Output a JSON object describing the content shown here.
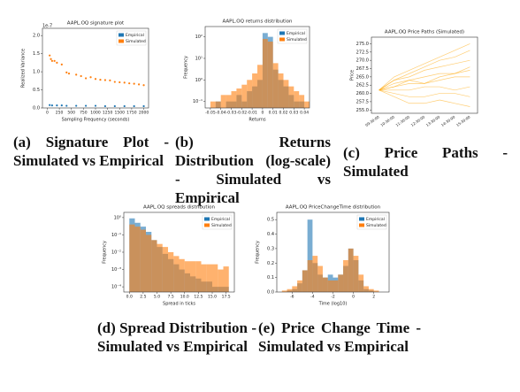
{
  "chart_data": [
    {
      "type": "scatter",
      "title": "AAPL.OQ signature plot",
      "xlabel": "Sampling Frequency (seconds)",
      "ylabel": "Realized Variance",
      "offset_label": "1e-7",
      "xlim": [
        -100,
        2100
      ],
      "xticks": [
        0,
        250,
        500,
        750,
        1000,
        1250,
        1500,
        1750,
        2000
      ],
      "ylim": [
        0,
        2.2
      ],
      "yticks": [
        {
          "value": 0,
          "label": "0.0"
        },
        {
          "value": 0.5,
          "label": "0.5"
        },
        {
          "value": 1,
          "label": "1.0"
        },
        {
          "value": 1.5,
          "label": "1.5"
        },
        {
          "value": 2,
          "label": "2.0"
        }
      ],
      "legend": "upper right",
      "series": [
        {
          "name": "Empirical",
          "color": "#1f77b4",
          "x": [
            50,
            100,
            200,
            300,
            400,
            600,
            800,
            1000,
            1200,
            1400,
            1600,
            1800,
            2000
          ],
          "values": [
            0.08,
            0.07,
            0.07,
            0.07,
            0.06,
            0.06,
            0.06,
            0.06,
            0.05,
            0.05,
            0.05,
            0.05,
            0.05
          ]
        },
        {
          "name": "Simulated",
          "color": "#ff7f0e",
          "x": [
            50,
            75,
            100,
            150,
            200,
            300,
            400,
            450,
            600,
            700,
            800,
            900,
            1000,
            1100,
            1200,
            1300,
            1400,
            1500,
            1600,
            1700,
            1800,
            1900,
            2000
          ],
          "values": [
            1.45,
            1.35,
            1.3,
            1.3,
            1.25,
            1.2,
            0.98,
            0.95,
            0.92,
            0.88,
            0.82,
            0.85,
            0.8,
            0.78,
            0.77,
            0.76,
            0.72,
            0.71,
            0.7,
            0.68,
            0.67,
            0.65,
            0.63
          ]
        }
      ]
    },
    {
      "type": "histogram",
      "title": "AAPL.OQ returns distribution",
      "xlabel": "Returns",
      "ylabel": "Frequency",
      "log_y": true,
      "xlim": [
        -0.055,
        0.045
      ],
      "xticks": [
        -0.05,
        -0.04,
        -0.03,
        -0.02,
        -0.01,
        0,
        0.01,
        0.02,
        0.03,
        0.04
      ],
      "ylim": [
        0.05,
        300
      ],
      "yticks": [
        {
          "value": 0.1,
          "label": "10⁻¹"
        },
        {
          "value": 1,
          "label": "10⁰"
        },
        {
          "value": 10,
          "label": "10¹"
        },
        {
          "value": 100,
          "label": "10²"
        }
      ],
      "legend": "upper right",
      "bins": [
        -0.05,
        -0.045,
        -0.04,
        -0.035,
        -0.03,
        -0.025,
        -0.02,
        -0.015,
        -0.01,
        -0.005,
        0,
        0.005,
        0.01,
        0.015,
        0.02,
        0.025,
        0.03,
        0.035,
        0.04,
        0.045
      ],
      "series": [
        {
          "name": "Empirical",
          "color": "#1f77b4",
          "values": [
            0,
            0.1,
            0,
            0.1,
            0.1,
            0.2,
            0.1,
            0.3,
            0.5,
            1,
            150,
            100,
            3,
            1,
            0.5,
            0.2,
            0.1,
            0.1,
            0
          ]
        },
        {
          "name": "Simulated",
          "color": "#ff7f0e",
          "values": [
            0.1,
            0.1,
            0.2,
            0.2,
            0.3,
            0.4,
            0.6,
            1,
            2,
            5,
            80,
            60,
            6,
            2,
            1,
            0.5,
            0.3,
            0.2,
            0.1
          ]
        }
      ]
    },
    {
      "type": "line",
      "title": "AAPL.OQ Price Paths (Simulated)",
      "ylabel": "Price",
      "categories": [
        "09:30:00",
        "10:30:00",
        "11:30:00",
        "12:30:00",
        "13:30:00",
        "14:30:00",
        "15:30:00"
      ],
      "ylim": [
        254,
        277
      ],
      "yticks": [
        {
          "value": 255,
          "label": "255.0"
        },
        {
          "value": 257.5,
          "label": "257.5"
        },
        {
          "value": 260,
          "label": "260.0"
        },
        {
          "value": 262.5,
          "label": "262.5"
        },
        {
          "value": 265,
          "label": "265.0"
        },
        {
          "value": 267.5,
          "label": "267.5"
        },
        {
          "value": 270,
          "label": "270.0"
        },
        {
          "value": 272.5,
          "label": "272.5"
        },
        {
          "value": 275,
          "label": "275.0"
        }
      ],
      "series": [
        {
          "color": "#ffa500",
          "values": [
            261,
            264,
            266,
            268,
            270,
            271,
            273
          ]
        },
        {
          "color": "#ffa500",
          "values": [
            261,
            263,
            264,
            265,
            266,
            266,
            267
          ]
        },
        {
          "color": "#ffa500",
          "values": [
            261,
            262,
            263,
            263,
            264,
            265,
            265
          ]
        },
        {
          "color": "#ffa500",
          "values": [
            261,
            261,
            261,
            262,
            262,
            261,
            262
          ]
        },
        {
          "color": "#ffa500",
          "values": [
            261,
            260,
            259,
            259,
            260,
            260,
            259
          ]
        },
        {
          "color": "#ffa500",
          "values": [
            261,
            265,
            267,
            269,
            271,
            273,
            275
          ]
        },
        {
          "color": "#ffa500",
          "values": [
            261,
            259,
            257,
            257,
            258,
            257,
            256
          ]
        },
        {
          "color": "#ffa500",
          "values": [
            261,
            264,
            265,
            267,
            268,
            269,
            270
          ]
        },
        {
          "color": "#ffa500",
          "values": [
            261,
            262,
            264,
            263,
            265,
            266,
            268
          ]
        }
      ]
    },
    {
      "type": "histogram",
      "title": "AAPL.OQ spreads distribution",
      "xlabel": "Spread in ticks",
      "ylabel": "Frequency",
      "log_y": true,
      "xlim": [
        -1,
        19
      ],
      "xticks": [
        {
          "value": 0,
          "label": "0.0"
        },
        {
          "value": 2.5,
          "label": "2.5"
        },
        {
          "value": 5,
          "label": "5.0"
        },
        {
          "value": 7.5,
          "label": "7.5"
        },
        {
          "value": 10,
          "label": "10.0"
        },
        {
          "value": 12.5,
          "label": "12.5"
        },
        {
          "value": 15,
          "label": "15.0"
        },
        {
          "value": 17.5,
          "label": "17.5"
        }
      ],
      "ylim": [
        5e-05,
        2
      ],
      "yticks": [
        {
          "value": 0.0001,
          "label": "10⁻⁴"
        },
        {
          "value": 0.001,
          "label": "10⁻³"
        },
        {
          "value": 0.01,
          "label": "10⁻²"
        },
        {
          "value": 0.1,
          "label": "10⁻¹"
        },
        {
          "value": 1,
          "label": "10⁰"
        }
      ],
      "legend": "upper right",
      "bins": [
        0,
        1,
        2,
        3,
        4,
        5,
        6,
        7,
        8,
        9,
        10,
        11,
        12,
        13,
        14,
        15,
        16,
        17,
        18
      ],
      "series": [
        {
          "name": "Empirical",
          "color": "#1f77b4",
          "values": [
            0.9,
            0.5,
            0.3,
            0.15,
            0.05,
            0.02,
            0.008,
            0.004,
            0.002,
            0.001,
            0.0006,
            0.0004,
            0.0003,
            0.0002,
            0.0002,
            0.0001,
            0.0001,
            0.0001
          ]
        },
        {
          "name": "Simulated",
          "color": "#ff7f0e",
          "values": [
            0.4,
            0.3,
            0.2,
            0.1,
            0.05,
            0.03,
            0.02,
            0.01,
            0.006,
            0.004,
            0.003,
            0.003,
            0.003,
            0.002,
            0.002,
            0.002,
            0.001,
            0.0015
          ]
        }
      ]
    },
    {
      "type": "histogram",
      "title": "AAPL.OQ PriceChangeTime distribution",
      "xlabel": "Time (log10)",
      "ylabel": "Frequency",
      "xlim": [
        -7.5,
        3.5
      ],
      "xticks": [
        -6,
        -4,
        -2,
        0,
        2
      ],
      "ylim": [
        0,
        0.55
      ],
      "yticks": [
        {
          "value": 0,
          "label": "0.0"
        },
        {
          "value": 0.1,
          "label": "0.1"
        },
        {
          "value": 0.2,
          "label": "0.2"
        },
        {
          "value": 0.3,
          "label": "0.3"
        },
        {
          "value": 0.4,
          "label": "0.4"
        },
        {
          "value": 0.5,
          "label": "0.5"
        }
      ],
      "legend": "upper right",
      "bins": [
        -7,
        -6.5,
        -6,
        -5.5,
        -5,
        -4.5,
        -4,
        -3.5,
        -3,
        -2.5,
        -2,
        -1.5,
        -1,
        -0.5,
        0,
        0.5,
        1,
        1.5,
        2,
        2.5,
        3
      ],
      "series": [
        {
          "name": "Empirical",
          "color": "#1f77b4",
          "values": [
            0,
            0.01,
            0.02,
            0.06,
            0.15,
            0.5,
            0.2,
            0.12,
            0.1,
            0.12,
            0.1,
            0.12,
            0.18,
            0.3,
            0.22,
            0.08,
            0.02,
            0.01,
            0,
            0
          ]
        },
        {
          "name": "Simulated",
          "color": "#ff7f0e",
          "values": [
            0.01,
            0.02,
            0.04,
            0.08,
            0.15,
            0.22,
            0.25,
            0.18,
            0.1,
            0.08,
            0.08,
            0.12,
            0.22,
            0.3,
            0.25,
            0.12,
            0.04,
            0.02,
            0.01,
            0
          ]
        }
      ]
    }
  ],
  "captions": [
    {
      "label": "(a)",
      "text": "Signature Plot - Simulated vs Empirical"
    },
    {
      "label": "(b)",
      "text": "Returns Distribution (log-scale) - Simulated vs Empirical"
    },
    {
      "label": "(c)",
      "text": "Price Paths - Simulated"
    },
    {
      "label": "(d)",
      "text": "Spread Distribution - Simulated vs Empirical"
    },
    {
      "label": "(e)",
      "text": "Price Change Time - Simulated vs Empirical"
    }
  ]
}
